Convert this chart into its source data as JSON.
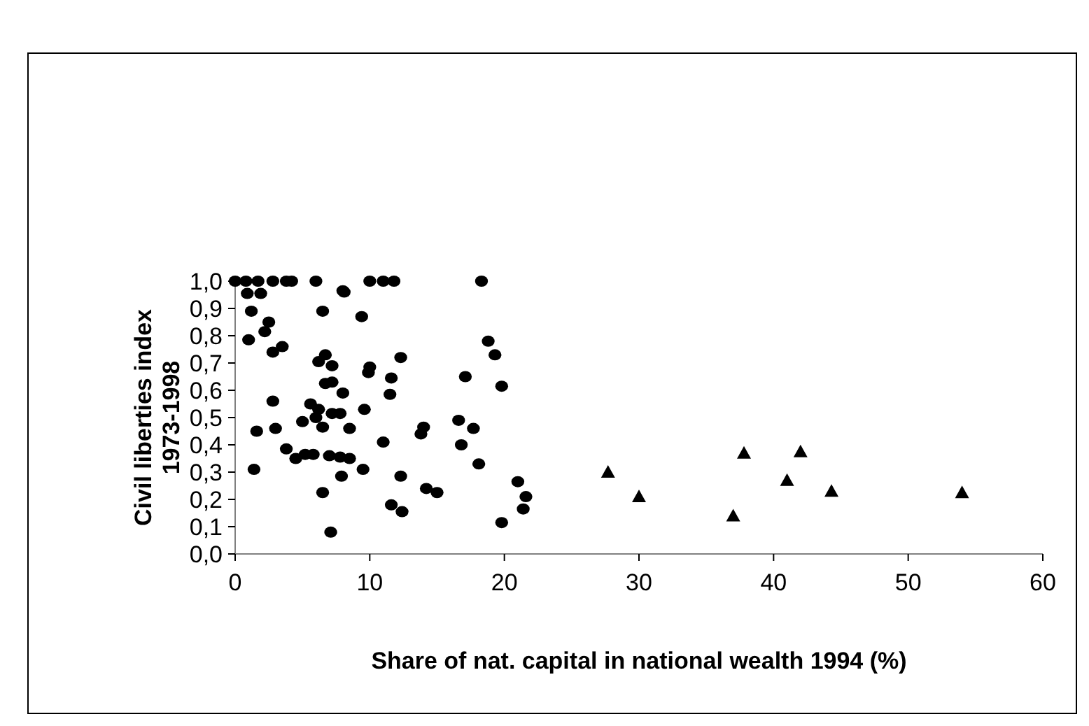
{
  "chart_data": {
    "type": "scatter",
    "xlabel": "Share of nat. capital in national wealth 1994 (%)",
    "ylabel": "Civil liberties index\n1973-1998",
    "xlim": [
      0,
      60
    ],
    "xticks": [
      0,
      10,
      20,
      30,
      40,
      50,
      60
    ],
    "ylim": [
      0,
      1
    ],
    "yticks": [
      {
        "value": 0,
        "label": "0,0"
      },
      {
        "value": 0.1,
        "label": "0,1"
      },
      {
        "value": 0.2,
        "label": "0,2"
      },
      {
        "value": 0.3,
        "label": "0,3"
      },
      {
        "value": 0.4,
        "label": "0,4"
      },
      {
        "value": 0.5,
        "label": "0,5"
      },
      {
        "value": 0.6,
        "label": "0,6"
      },
      {
        "value": 0.7,
        "label": "0,7"
      },
      {
        "value": 0.8,
        "label": "0,8"
      },
      {
        "value": 0.9,
        "label": "0,9"
      },
      {
        "value": 1,
        "label": "1,0"
      }
    ],
    "grid": false,
    "series": [
      {
        "color": "#000000",
        "marker": "circle",
        "x": [
          0,
          0.8,
          1.7,
          2.8,
          3.8,
          4.2,
          6.0,
          10.0,
          11.0,
          11.8,
          18.3,
          0.9,
          1.9,
          1.2,
          2.5,
          2.2,
          1.0,
          3.5,
          2.8,
          6.5,
          9.4,
          8.0,
          8.1,
          6.7,
          6.2,
          7.2,
          10.0,
          9.9,
          12.3,
          11.6,
          6.7,
          7.2,
          11.5,
          8.0,
          2.8,
          5.6,
          6.2,
          7.2,
          7.8,
          9.6,
          6.0,
          5.0,
          6.5,
          8.5,
          3.0,
          1.6,
          14.0,
          13.8,
          16.6,
          17.1,
          16.8,
          17.7,
          18.8,
          19.3,
          19.8,
          11.0,
          3.8,
          4.5,
          5.2,
          5.8,
          7.0,
          7.8,
          8.5,
          1.4,
          9.5,
          7.9,
          12.3,
          18.1,
          6.5,
          14.2,
          15.0,
          11.6,
          12.4,
          21.0,
          21.6,
          21.4,
          19.8,
          7.1
        ],
        "values": [
          1,
          1,
          1,
          1,
          1,
          1,
          1,
          1,
          1,
          1,
          1,
          0.955,
          0.955,
          0.89,
          0.85,
          0.815,
          0.785,
          0.76,
          0.74,
          0.89,
          0.87,
          0.965,
          0.96,
          0.73,
          0.705,
          0.69,
          0.685,
          0.665,
          0.72,
          0.645,
          0.625,
          0.63,
          0.585,
          0.59,
          0.56,
          0.55,
          0.53,
          0.515,
          0.515,
          0.53,
          0.5,
          0.485,
          0.465,
          0.46,
          0.46,
          0.45,
          0.465,
          0.44,
          0.49,
          0.65,
          0.4,
          0.46,
          0.78,
          0.73,
          0.615,
          0.41,
          0.385,
          0.35,
          0.365,
          0.365,
          0.36,
          0.355,
          0.35,
          0.31,
          0.31,
          0.285,
          0.285,
          0.33,
          0.225,
          0.24,
          0.225,
          0.18,
          0.155,
          0.265,
          0.21,
          0.165,
          0.115,
          0.08
        ]
      },
      {
        "color": "#000000",
        "marker": "triangle",
        "x": [
          27.7,
          30,
          37,
          37.8,
          41,
          42,
          44.3,
          54
        ],
        "values": [
          0.3,
          0.21,
          0.14,
          0.37,
          0.27,
          0.375,
          0.23,
          0.225
        ]
      }
    ]
  }
}
